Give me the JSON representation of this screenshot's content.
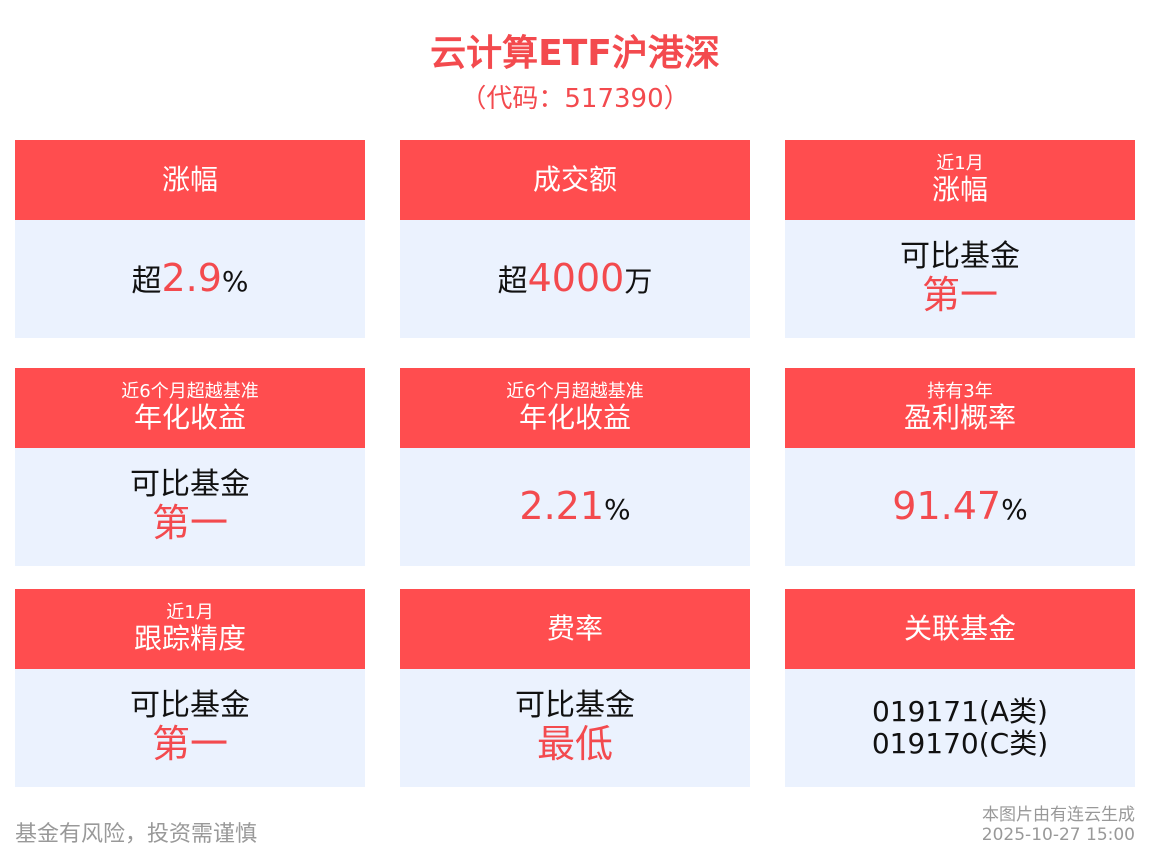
{
  "title": "云计算ETF沪港深",
  "subtitle": "（代码：517390）",
  "cards": [
    {
      "top": "",
      "head": "涨幅",
      "prefix": "超",
      "value": "2.9",
      "suffix": "%"
    },
    {
      "top": "",
      "head": "成交额",
      "prefix": "超",
      "value": "4000",
      "suffix": "万"
    },
    {
      "top": "近1月",
      "head": "涨幅",
      "line1": "可比基金",
      "line2": "第一"
    },
    {
      "top": "近6个月超越基准",
      "head": "年化收益",
      "line1": "可比基金",
      "line2": "第一"
    },
    {
      "top": "近6个月超越基准",
      "head": "年化收益",
      "prefix": "",
      "value": "2.21",
      "suffix": "%"
    },
    {
      "top": "持有3年",
      "head": "盈利概率",
      "prefix": "",
      "value": "91.47",
      "suffix": "%"
    },
    {
      "top": "近1月",
      "head": "跟踪精度",
      "line1": "可比基金",
      "line2": "第一"
    },
    {
      "top": "",
      "head": "费率",
      "line1": "可比基金",
      "line2": "最低"
    },
    {
      "top": "",
      "head": "关联基金",
      "codes": [
        "019171(A类)",
        "019170(C类)"
      ]
    }
  ],
  "colors": {
    "header": "#ff4d4f",
    "body": "#ebf2fe",
    "accent": "#f34a4e"
  },
  "footer": {
    "disclaimer": "基金有风险，投资需谨慎",
    "source": "本图片由有连云生成",
    "timestamp": "2025-10-27 15:00"
  }
}
